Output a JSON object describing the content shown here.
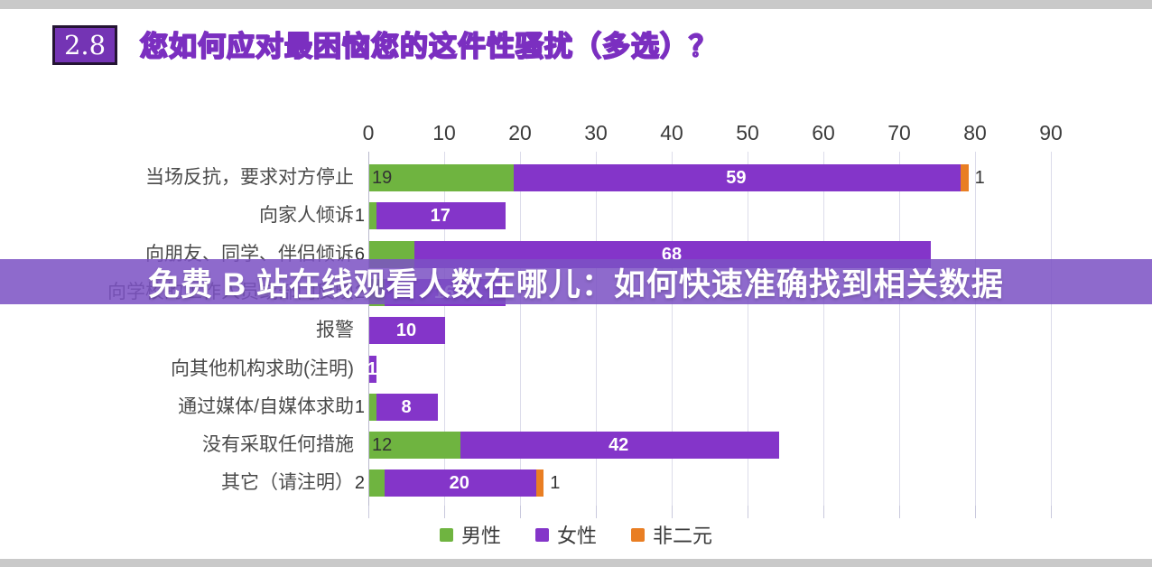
{
  "overlay": {
    "text": "免费 B 站在线观看人数在哪儿：如何快速准确找到相关数据"
  },
  "header": {
    "number_badge": "2.8",
    "title": "您如何应对最困恼您的这件性骚扰（多选）？"
  },
  "chart_data": {
    "type": "bar",
    "orientation": "horizontal",
    "stacked": true,
    "title": "您如何应对最困恼您的这件性骚扰（多选）？",
    "x_ticks": [
      0,
      10,
      20,
      30,
      40,
      50,
      60,
      70,
      80,
      90
    ],
    "xlim": [
      0,
      95
    ],
    "grid": true,
    "legend_position": "bottom",
    "categories": [
      "当场反抗，要求对方停止",
      "向家人倾诉",
      "向朋友、同学、伴侣倾诉",
      "向学校的工作人员或部门反映",
      "报警",
      "向其他机构求助(注明)",
      "通过媒体/自媒体求助",
      "没有采取任何措施",
      "其它（请注明）"
    ],
    "series": [
      {
        "name": "男性",
        "color": "#6fb440",
        "values": [
          19,
          1,
          6,
          2,
          0,
          0,
          1,
          12,
          2
        ]
      },
      {
        "name": "女性",
        "color": "#8435c9",
        "values": [
          59,
          17,
          68,
          16,
          10,
          1,
          8,
          42,
          20
        ]
      },
      {
        "name": "非二元",
        "color": "#e97e23",
        "values": [
          1,
          0,
          0,
          0,
          0,
          0,
          0,
          0,
          1
        ]
      }
    ]
  },
  "colors": {
    "accent_purple": "#7b2fc0",
    "bar_green": "#6fb440",
    "bar_purple": "#8435c9",
    "bar_orange": "#e97e23",
    "grid": "#dcdcea",
    "frame_gray": "#c9c9c9"
  }
}
